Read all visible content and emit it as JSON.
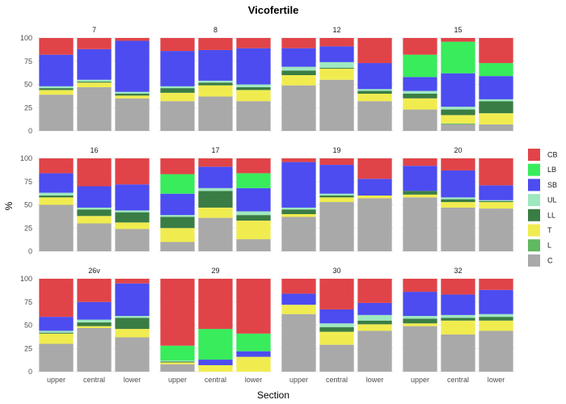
{
  "chart_data": {
    "type": "bar",
    "title": "Vicofertile",
    "xlabel": "Section",
    "ylabel": "%",
    "ylim": [
      0,
      100
    ],
    "yticks": [
      0,
      25,
      50,
      75,
      100
    ],
    "grid": true,
    "legend_position": "right",
    "categories": [
      "upper",
      "central",
      "lower"
    ],
    "series_order": [
      "C",
      "L",
      "T",
      "LL",
      "UL",
      "SB",
      "LB",
      "CB"
    ],
    "legend_order": [
      "CB",
      "LB",
      "SB",
      "UL",
      "LL",
      "T",
      "L",
      "C"
    ],
    "colors": {
      "CB": "#e04448",
      "LB": "#38ec5c",
      "SB": "#4c4cf0",
      "UL": "#9ee8c0",
      "LL": "#3a7d44",
      "T": "#f0ec50",
      "L": "#60b860",
      "C": "#a9a9a9"
    },
    "panels": [
      {
        "label": "7",
        "bars": [
          {
            "C": 39,
            "L": 0,
            "T": 5,
            "LL": 2,
            "UL": 2,
            "SB": 34,
            "LB": 0,
            "CB": 18
          },
          {
            "C": 47,
            "L": 0,
            "T": 5,
            "LL": 1,
            "UL": 2,
            "SB": 33,
            "LB": 0,
            "CB": 12
          },
          {
            "C": 35,
            "L": 0,
            "T": 3,
            "LL": 2,
            "UL": 2,
            "SB": 55,
            "LB": 0,
            "CB": 3
          }
        ]
      },
      {
        "label": "8",
        "bars": [
          {
            "C": 32,
            "L": 0,
            "T": 9,
            "LL": 5,
            "UL": 2,
            "SB": 38,
            "LB": 0,
            "CB": 14
          },
          {
            "C": 37,
            "L": 0,
            "T": 12,
            "LL": 3,
            "UL": 2,
            "SB": 33,
            "LB": 0,
            "CB": 13
          },
          {
            "C": 32,
            "L": 0,
            "T": 12,
            "LL": 3,
            "UL": 3,
            "SB": 39,
            "LB": 0,
            "CB": 11
          }
        ]
      },
      {
        "label": "12",
        "bars": [
          {
            "C": 49,
            "L": 0,
            "T": 11,
            "LL": 5,
            "UL": 4,
            "SB": 20,
            "LB": 0,
            "CB": 11
          },
          {
            "C": 55,
            "L": 0,
            "T": 12,
            "LL": 1,
            "UL": 6,
            "SB": 17,
            "LB": 0,
            "CB": 9
          },
          {
            "C": 32,
            "L": 0,
            "T": 8,
            "LL": 3,
            "UL": 2,
            "SB": 28,
            "LB": 0,
            "CB": 27
          }
        ]
      },
      {
        "label": "15",
        "bars": [
          {
            "C": 23,
            "L": 0,
            "T": 12,
            "LL": 5,
            "UL": 3,
            "SB": 15,
            "LB": 24,
            "CB": 18
          },
          {
            "C": 7,
            "L": 1,
            "T": 9,
            "LL": 6,
            "UL": 3,
            "SB": 36,
            "LB": 34,
            "CB": 4
          },
          {
            "C": 7,
            "L": 0,
            "T": 12,
            "LL": 13,
            "UL": 2,
            "SB": 25,
            "LB": 14,
            "CB": 27
          }
        ]
      },
      {
        "label": "16",
        "bars": [
          {
            "C": 50,
            "L": 0,
            "T": 8,
            "LL": 2,
            "UL": 3,
            "SB": 21,
            "LB": 0,
            "CB": 16
          },
          {
            "C": 30,
            "L": 0,
            "T": 8,
            "LL": 7,
            "UL": 2,
            "SB": 23,
            "LB": 0,
            "CB": 30
          },
          {
            "C": 24,
            "L": 0,
            "T": 7,
            "LL": 11,
            "UL": 2,
            "SB": 28,
            "LB": 0,
            "CB": 28
          }
        ]
      },
      {
        "label": "17",
        "bars": [
          {
            "C": 10,
            "L": 0,
            "T": 15,
            "LL": 12,
            "UL": 2,
            "SB": 23,
            "LB": 21,
            "CB": 17
          },
          {
            "C": 36,
            "L": 0,
            "T": 11,
            "LL": 18,
            "UL": 3,
            "SB": 23,
            "LB": 0,
            "CB": 9
          },
          {
            "C": 13,
            "L": 0,
            "T": 20,
            "LL": 6,
            "UL": 4,
            "SB": 25,
            "LB": 16,
            "CB": 16
          }
        ]
      },
      {
        "label": "19",
        "bars": [
          {
            "C": 37,
            "L": 0,
            "T": 3,
            "LL": 5,
            "UL": 2,
            "SB": 49,
            "LB": 0,
            "CB": 4
          },
          {
            "C": 53,
            "L": 0,
            "T": 5,
            "LL": 2,
            "UL": 2,
            "SB": 31,
            "LB": 0,
            "CB": 7
          },
          {
            "C": 57,
            "L": 0,
            "T": 3,
            "LL": 0,
            "UL": 0,
            "SB": 18,
            "LB": 0,
            "CB": 22
          }
        ]
      },
      {
        "label": "20",
        "bars": [
          {
            "C": 58,
            "L": 0,
            "T": 3,
            "LL": 4,
            "UL": 0,
            "SB": 27,
            "LB": 0,
            "CB": 8
          },
          {
            "C": 47,
            "L": 0,
            "T": 6,
            "LL": 3,
            "UL": 2,
            "SB": 29,
            "LB": 0,
            "CB": 13
          },
          {
            "C": 46,
            "L": 0,
            "T": 7,
            "LL": 1,
            "UL": 1,
            "SB": 16,
            "LB": 0,
            "CB": 29
          }
        ]
      },
      {
        "label": "26v",
        "bars": [
          {
            "C": 30,
            "L": 0,
            "T": 11,
            "LL": 1,
            "UL": 2,
            "SB": 15,
            "LB": 0,
            "CB": 41
          },
          {
            "C": 47,
            "L": 0,
            "T": 2,
            "LL": 4,
            "UL": 3,
            "SB": 19,
            "LB": 0,
            "CB": 25
          },
          {
            "C": 37,
            "L": 0,
            "T": 9,
            "LL": 12,
            "UL": 2,
            "SB": 35,
            "LB": 0,
            "CB": 5
          }
        ]
      },
      {
        "label": "29",
        "bars": [
          {
            "C": 8,
            "L": 0,
            "T": 2,
            "LL": 1,
            "UL": 1,
            "SB": 0,
            "LB": 16,
            "CB": 72
          },
          {
            "C": 0,
            "L": 0,
            "T": 7,
            "LL": 0,
            "UL": 0,
            "SB": 6,
            "LB": 33,
            "CB": 54
          },
          {
            "C": 0,
            "L": 0,
            "T": 16,
            "LL": 0,
            "UL": 0,
            "SB": 6,
            "LB": 19,
            "CB": 59
          }
        ]
      },
      {
        "label": "30",
        "bars": [
          {
            "C": 62,
            "L": 0,
            "T": 10,
            "LL": 0,
            "UL": 0,
            "SB": 12,
            "LB": 0,
            "CB": 16
          },
          {
            "C": 29,
            "L": 0,
            "T": 14,
            "LL": 5,
            "UL": 4,
            "SB": 15,
            "LB": 0,
            "CB": 33
          },
          {
            "C": 44,
            "L": 0,
            "T": 7,
            "LL": 4,
            "UL": 6,
            "SB": 13,
            "LB": 0,
            "CB": 26
          }
        ]
      },
      {
        "label": "32",
        "bars": [
          {
            "C": 49,
            "L": 0,
            "T": 3,
            "LL": 5,
            "UL": 3,
            "SB": 26,
            "LB": 0,
            "CB": 14
          },
          {
            "C": 40,
            "L": 0,
            "T": 15,
            "LL": 3,
            "UL": 3,
            "SB": 22,
            "LB": 0,
            "CB": 17
          },
          {
            "C": 44,
            "L": 0,
            "T": 11,
            "LL": 4,
            "UL": 3,
            "SB": 26,
            "LB": 0,
            "CB": 12
          }
        ]
      }
    ]
  }
}
